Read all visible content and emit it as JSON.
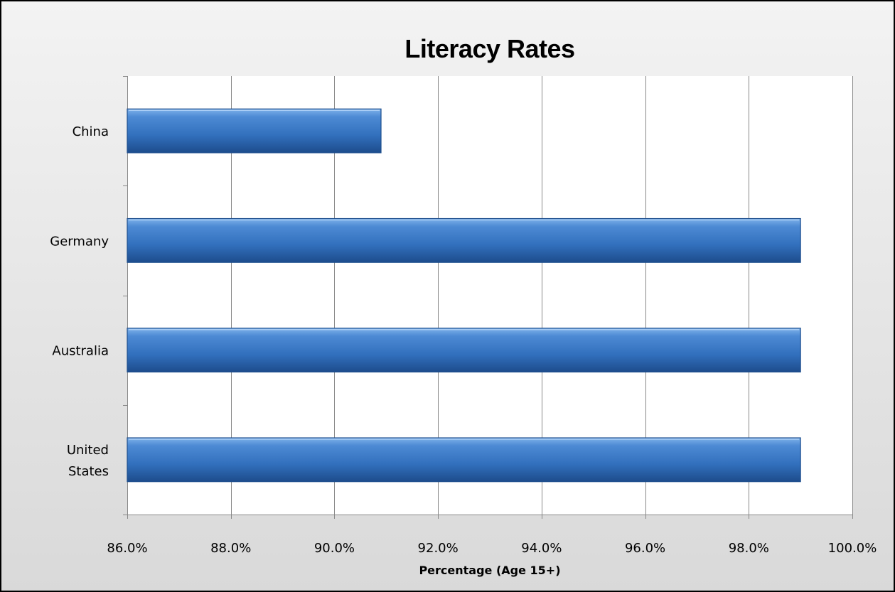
{
  "chart_data": {
    "type": "bar",
    "orientation": "horizontal",
    "title": "Literacy Rates",
    "xlabel": "Percentage (Age 15+)",
    "ylabel": "",
    "categories": [
      "China",
      "Germany",
      "Australia",
      "United States"
    ],
    "values": [
      90.9,
      99.0,
      99.0,
      99.0
    ],
    "xlim": [
      86.0,
      100.0
    ],
    "xticks": [
      86.0,
      88.0,
      90.0,
      92.0,
      94.0,
      96.0,
      98.0,
      100.0
    ],
    "tick_format": "0.0%",
    "grid": "vertical",
    "legend": "none",
    "colors": {
      "bar": "#3a78c3",
      "bar_dark": "#1f4f8e",
      "bar_light": "#6ea4e0",
      "background_outer": "#e6e6e6",
      "plot_area": "#ffffff",
      "gridline": "#888888"
    }
  }
}
